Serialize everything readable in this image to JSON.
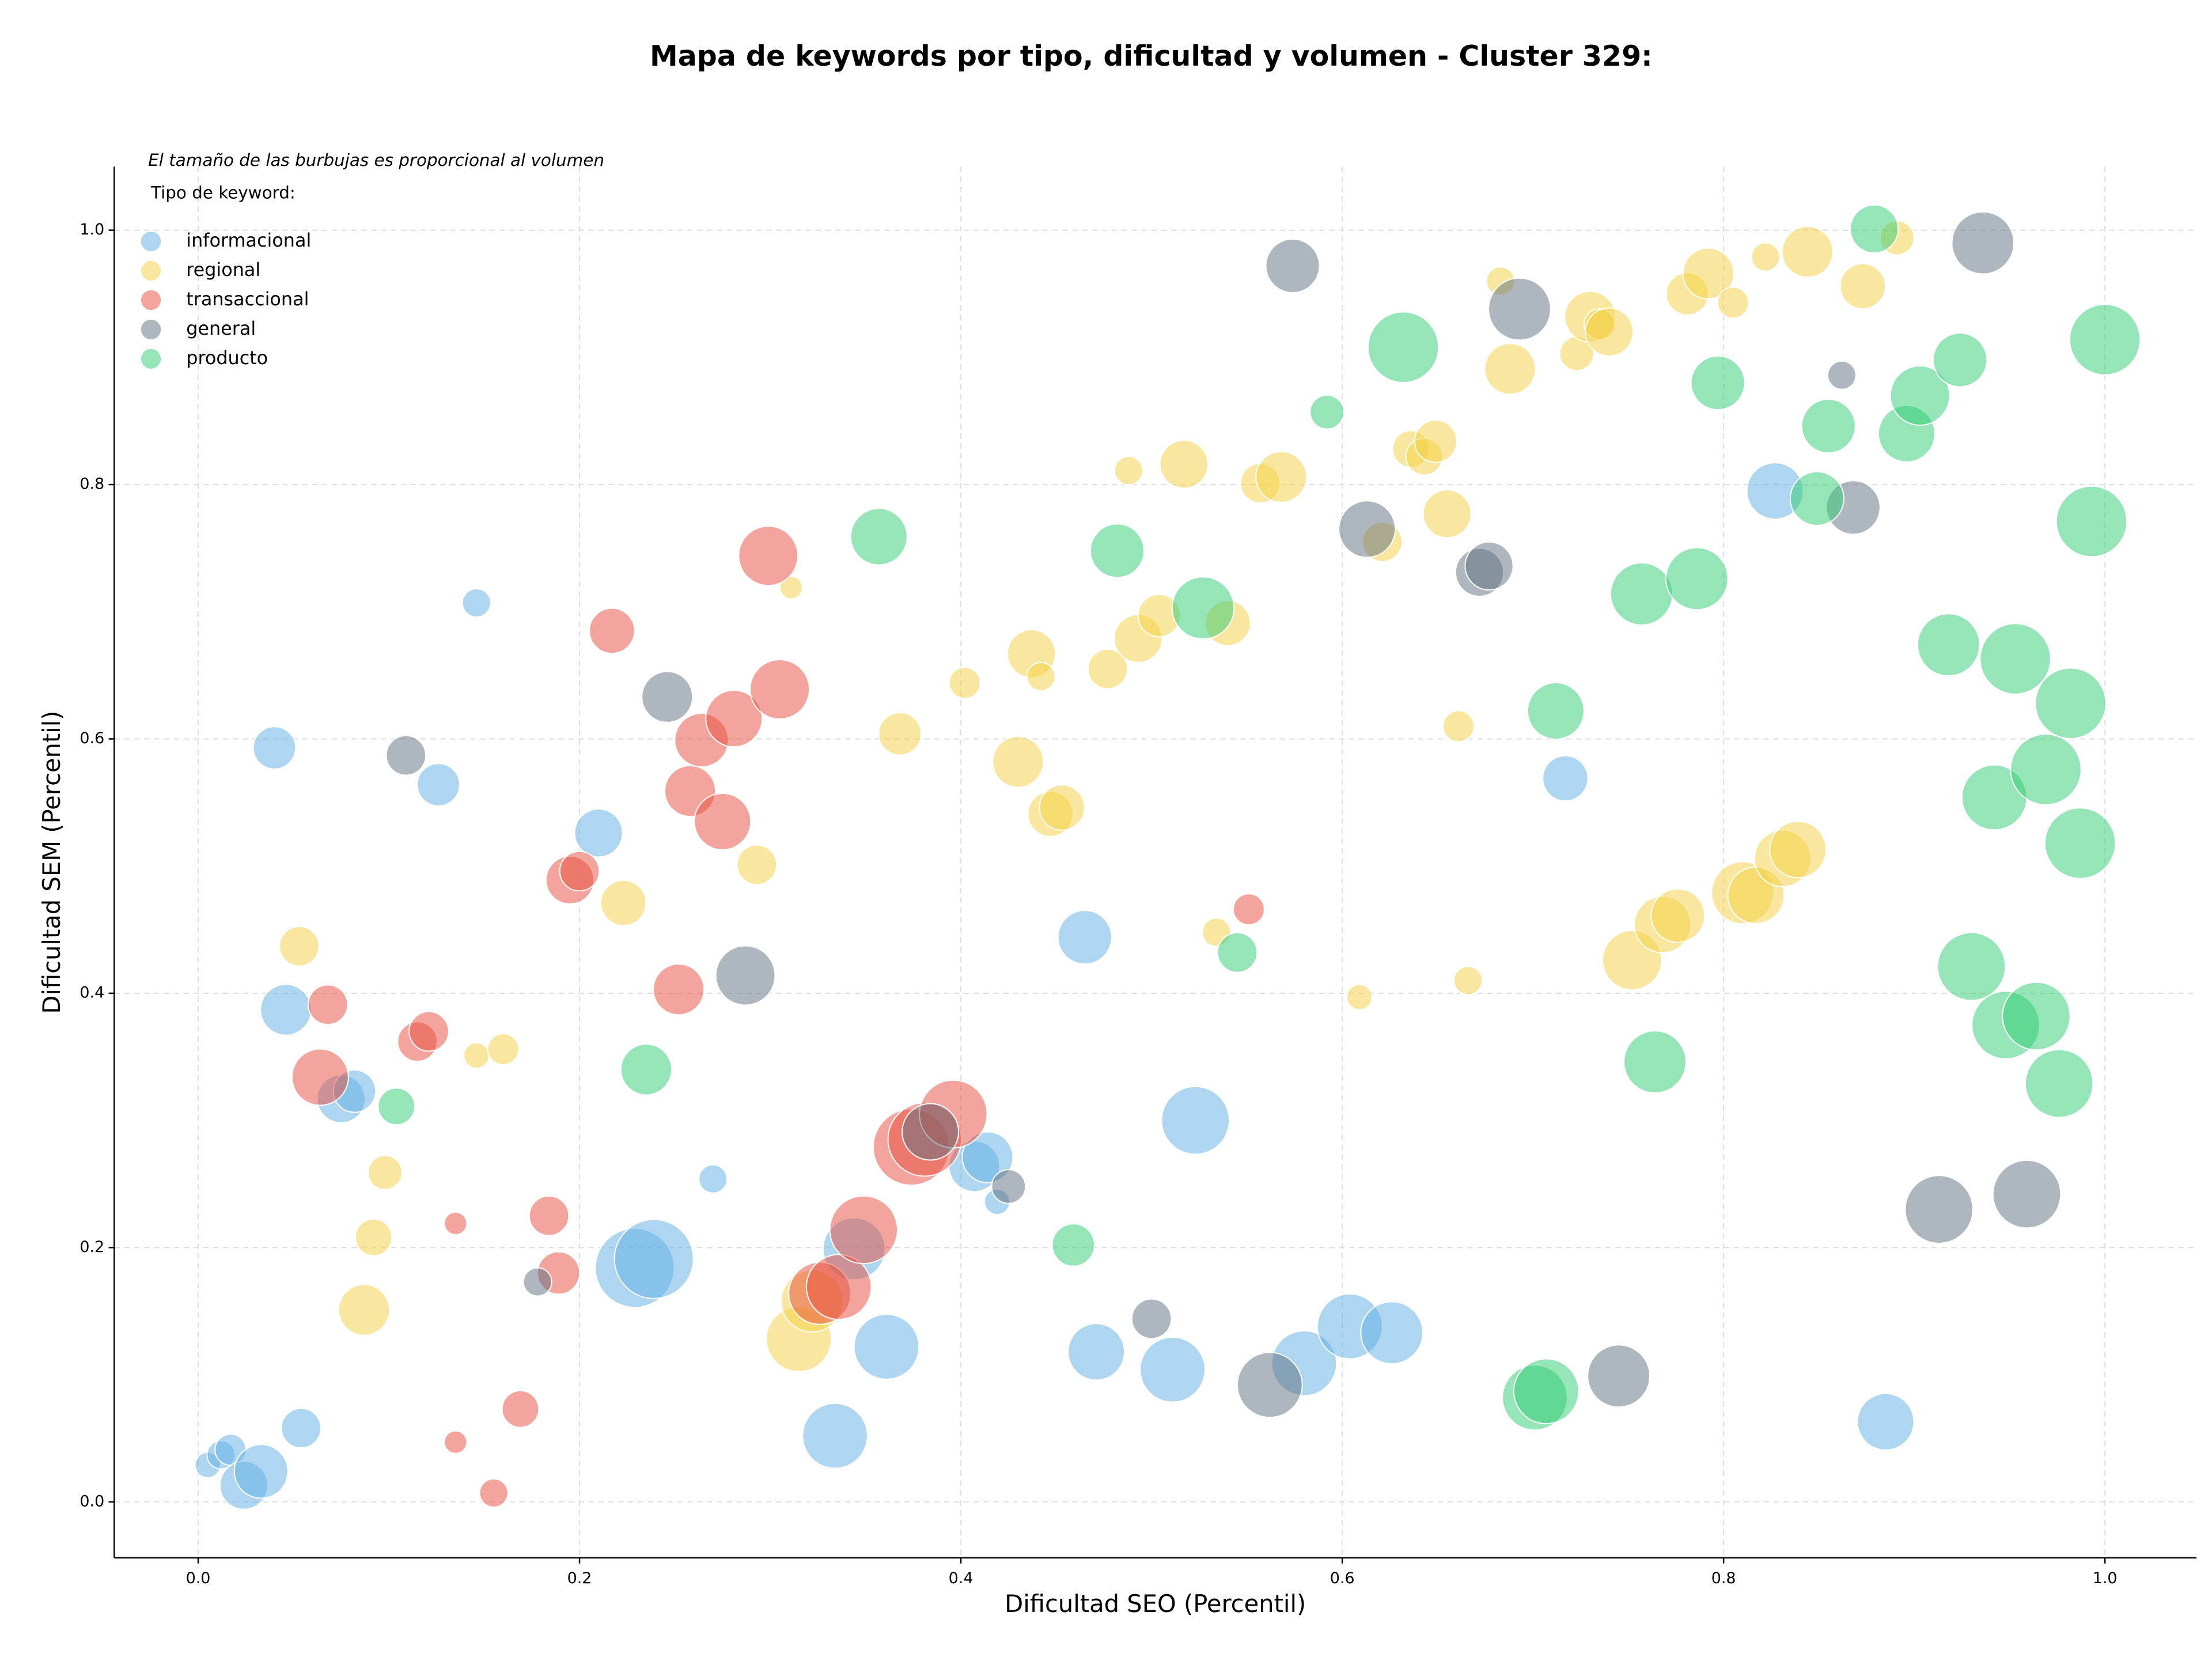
{
  "chart_data": {
    "type": "scatter",
    "title": "Mapa de keywords por tipo, dificultad y volumen - Cluster 329:",
    "annotation": "El tamaño de las burbujas es proporcional al volumen",
    "legend_title": "Tipo de keyword:",
    "legend_position": "upper left",
    "x_label": "Dificultad SEO (Percentil)",
    "y_label": "Dificultad SEM (Percentil)",
    "xlim": [
      -0.044,
      1.048
    ],
    "ylim": [
      -0.044,
      1.05
    ],
    "xticks": [
      {
        "value": 0,
        "label": "0.0"
      },
      0.2,
      0.4,
      0.6,
      0.8,
      {
        "value": 1,
        "label": "1.0"
      }
    ],
    "yticks": [
      {
        "value": 0,
        "label": "0.0"
      },
      0.2,
      0.4,
      0.6,
      0.8,
      {
        "value": 1,
        "label": "1.0"
      }
    ],
    "grid": true,
    "series": [
      {
        "name": "informacional",
        "color": "#5dade2",
        "x": [
          0.005,
          0.012,
          0.017,
          0.024,
          0.033,
          0.054,
          0.04,
          0.046,
          0.075,
          0.082,
          0.126,
          0.146,
          0.21,
          0.229,
          0.239,
          0.27,
          0.344,
          0.334,
          0.361,
          0.407,
          0.414,
          0.419,
          0.465,
          0.471,
          0.511,
          0.523,
          0.58,
          0.604,
          0.626,
          0.717,
          0.827,
          0.885
        ],
        "values": [
          0.029,
          0.037,
          0.041,
          0.013,
          0.024,
          0.058,
          0.593,
          0.387,
          0.317,
          0.323,
          0.564,
          0.707,
          0.526,
          0.184,
          0.191,
          0.254,
          0.199,
          0.052,
          0.122,
          0.264,
          0.271,
          0.236,
          0.444,
          0.118,
          0.104,
          0.3,
          0.109,
          0.138,
          0.133,
          0.569,
          0.795,
          0.063
        ],
        "sizes": [
          9,
          10,
          11,
          17,
          19,
          14,
          15,
          18,
          17,
          15,
          15,
          10,
          17,
          28,
          28,
          10,
          22,
          23,
          23,
          18,
          18,
          9,
          19,
          20,
          23,
          24,
          23,
          23,
          22,
          16,
          20,
          20
        ]
      },
      {
        "name": "regional",
        "color": "#f4d03f",
        "x": [
          0.053,
          0.087,
          0.092,
          0.098,
          0.146,
          0.16,
          0.223,
          0.293,
          0.311,
          0.315,
          0.322,
          0.368,
          0.402,
          0.43,
          0.437,
          0.442,
          0.447,
          0.453,
          0.477,
          0.488,
          0.493,
          0.504,
          0.517,
          0.534,
          0.54,
          0.557,
          0.568,
          0.609,
          0.621,
          0.636,
          0.643,
          0.649,
          0.655,
          0.661,
          0.666,
          0.683,
          0.688,
          0.723,
          0.73,
          0.735,
          0.74,
          0.752,
          0.768,
          0.776,
          0.781,
          0.792,
          0.805,
          0.81,
          0.817,
          0.822,
          0.831,
          0.839,
          0.844,
          0.873,
          0.891
        ],
        "values": [
          0.437,
          0.151,
          0.208,
          0.259,
          0.351,
          0.356,
          0.471,
          0.501,
          0.719,
          0.128,
          0.158,
          0.604,
          0.644,
          0.582,
          0.667,
          0.649,
          0.541,
          0.546,
          0.655,
          0.811,
          0.679,
          0.697,
          0.816,
          0.448,
          0.691,
          0.801,
          0.806,
          0.397,
          0.755,
          0.828,
          0.822,
          0.834,
          0.777,
          0.61,
          0.41,
          0.96,
          0.891,
          0.903,
          0.932,
          0.926,
          0.92,
          0.426,
          0.454,
          0.461,
          0.95,
          0.966,
          0.943,
          0.479,
          0.477,
          0.979,
          0.506,
          0.513,
          0.983,
          0.956,
          0.994
        ],
        "sizes": [
          14,
          18,
          13,
          12,
          9,
          11,
          16,
          14,
          8,
          23,
          22,
          15,
          11,
          18,
          17,
          10,
          16,
          16,
          14,
          10,
          17,
          15,
          17,
          10,
          16,
          14,
          18,
          9,
          14,
          13,
          13,
          15,
          17,
          11,
          10,
          10,
          18,
          12,
          18,
          11,
          17,
          21,
          20,
          19,
          15,
          18,
          11,
          22,
          20,
          10,
          20,
          20,
          18,
          16,
          12
        ]
      },
      {
        "name": "transaccional",
        "color": "#e74c3c",
        "x": [
          0.064,
          0.068,
          0.115,
          0.121,
          0.135,
          0.135,
          0.155,
          0.169,
          0.184,
          0.189,
          0.195,
          0.2,
          0.217,
          0.252,
          0.258,
          0.264,
          0.275,
          0.281,
          0.299,
          0.305,
          0.326,
          0.336,
          0.349,
          0.374,
          0.381,
          0.396,
          0.551
        ],
        "values": [
          0.334,
          0.391,
          0.362,
          0.37,
          0.219,
          0.047,
          0.007,
          0.073,
          0.225,
          0.18,
          0.489,
          0.496,
          0.685,
          0.403,
          0.559,
          0.599,
          0.535,
          0.616,
          0.744,
          0.639,
          0.164,
          0.169,
          0.214,
          0.279,
          0.285,
          0.305,
          0.466
        ],
        "sizes": [
          20,
          14,
          14,
          14,
          8,
          8,
          10,
          13,
          14,
          15,
          17,
          14,
          16,
          18,
          18,
          19,
          20,
          20,
          21,
          21,
          22,
          23,
          24,
          27,
          26,
          24,
          11
        ]
      },
      {
        "name": "general",
        "color": "#5d6d7e",
        "x": [
          0.109,
          0.178,
          0.246,
          0.287,
          0.384,
          0.425,
          0.5,
          0.562,
          0.574,
          0.613,
          0.672,
          0.677,
          0.693,
          0.745,
          0.862,
          0.868,
          0.913,
          0.936,
          0.959
        ],
        "values": [
          0.587,
          0.173,
          0.633,
          0.414,
          0.291,
          0.248,
          0.144,
          0.092,
          0.972,
          0.765,
          0.731,
          0.736,
          0.938,
          0.099,
          0.886,
          0.782,
          0.23,
          0.99,
          0.242
        ],
        "sizes": [
          14,
          10,
          18,
          21,
          20,
          12,
          14,
          23,
          19,
          20,
          17,
          17,
          22,
          22,
          10,
          19,
          24,
          22,
          24
        ]
      },
      {
        "name": "producto",
        "color": "#2ecc71",
        "x": [
          0.104,
          0.235,
          0.357,
          0.459,
          0.482,
          0.527,
          0.545,
          0.592,
          0.632,
          0.712,
          0.701,
          0.707,
          0.757,
          0.764,
          0.786,
          0.797,
          0.849,
          0.855,
          0.879,
          0.896,
          0.903,
          0.924,
          0.918,
          0.93,
          0.942,
          0.948,
          0.953,
          0.964,
          0.969,
          0.976,
          0.982,
          0.987,
          0.993,
          1.0
        ],
        "values": [
          0.311,
          0.34,
          0.759,
          0.202,
          0.748,
          0.703,
          0.432,
          0.857,
          0.908,
          0.622,
          0.082,
          0.087,
          0.714,
          0.346,
          0.726,
          0.88,
          0.789,
          0.846,
          1.001,
          0.84,
          0.87,
          0.898,
          0.674,
          0.421,
          0.554,
          0.375,
          0.663,
          0.382,
          0.576,
          0.329,
          0.628,
          0.518,
          0.771,
          0.914
        ],
        "sizes": [
          13,
          18,
          20,
          15,
          19,
          22,
          14,
          12,
          25,
          20,
          23,
          23,
          22,
          22,
          22,
          19,
          19,
          19,
          17,
          20,
          21,
          19,
          22,
          24,
          23,
          24,
          25,
          24,
          25,
          24,
          25,
          25,
          25,
          25
        ]
      }
    ]
  }
}
